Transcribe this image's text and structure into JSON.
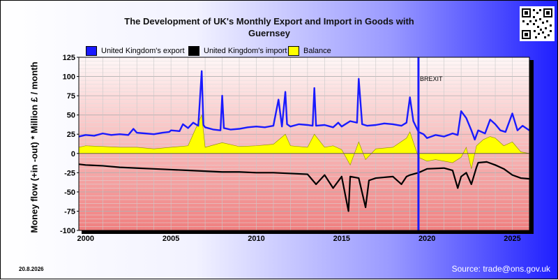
{
  "chart_data": {
    "type": "line",
    "title_line1": "The Development of UK's Monthly Export and Import in Goods with",
    "title_line2": "Guernsey",
    "ylabel": "Money flow (+in -out) * Million £ / month",
    "xlabel": "",
    "ylim": [
      -100,
      125
    ],
    "xlim": [
      1999.6,
      2026.0
    ],
    "yticks": [
      125,
      100,
      75,
      50,
      25,
      0,
      -25,
      -50,
      -75,
      -100
    ],
    "xticks": [
      2000,
      2005,
      2010,
      2015,
      2020,
      2025
    ],
    "grid": true,
    "legend_position": "top",
    "annotation": {
      "label": "BREXIT",
      "x": 2019.5
    },
    "series": [
      {
        "name": "United Kingdom's export",
        "color": "#1a1aff",
        "x": [
          1999.6,
          2000.0,
          2000.5,
          2001.0,
          2001.5,
          2002.0,
          2002.5,
          2002.8,
          2003.0,
          2003.5,
          2004.0,
          2004.5,
          2004.9,
          2005.0,
          2005.5,
          2005.7,
          2006.0,
          2006.3,
          2006.6,
          2006.8,
          2006.9,
          2007.0,
          2007.5,
          2007.9,
          2008.0,
          2008.1,
          2008.5,
          2009.0,
          2009.5,
          2010.0,
          2010.5,
          2011.0,
          2011.3,
          2011.5,
          2011.7,
          2011.8,
          2012.0,
          2012.5,
          2013.0,
          2013.3,
          2013.4,
          2013.5,
          2014.0,
          2014.5,
          2014.8,
          2015.0,
          2015.5,
          2015.9,
          2016.0,
          2016.2,
          2016.5,
          2017.0,
          2017.5,
          2018.0,
          2018.5,
          2018.8,
          2019.0,
          2019.2,
          2019.5,
          2019.8,
          2020.0,
          2020.5,
          2021.0,
          2021.5,
          2021.8,
          2022.0,
          2022.3,
          2022.6,
          2022.8,
          2023.0,
          2023.4,
          2023.7,
          2024.0,
          2024.3,
          2024.6,
          2025.0,
          2025.3,
          2025.6,
          2026.0
        ],
        "values": [
          22,
          24,
          23,
          26,
          24,
          25,
          24,
          32,
          27,
          26,
          25,
          27,
          28,
          30,
          29,
          38,
          33,
          40,
          36,
          107,
          37,
          34,
          31,
          30,
          75,
          33,
          31,
          32,
          34,
          35,
          34,
          36,
          70,
          35,
          80,
          38,
          35,
          38,
          37,
          36,
          85,
          36,
          37,
          34,
          40,
          35,
          42,
          40,
          97,
          38,
          36,
          37,
          39,
          38,
          36,
          40,
          73,
          42,
          28,
          25,
          20,
          24,
          22,
          26,
          24,
          55,
          46,
          30,
          18,
          30,
          26,
          44,
          38,
          30,
          28,
          52,
          30,
          36,
          30
        ]
      },
      {
        "name": "United Kingdom's import",
        "color": "#000000",
        "x": [
          1999.6,
          2000.0,
          2001.0,
          2002.0,
          2003.0,
          2004.0,
          2005.0,
          2006.0,
          2007.0,
          2008.0,
          2009.0,
          2010.0,
          2011.0,
          2012.0,
          2013.0,
          2013.5,
          2014.0,
          2014.5,
          2015.0,
          2015.4,
          2015.5,
          2016.0,
          2016.4,
          2016.6,
          2017.0,
          2018.0,
          2018.5,
          2018.8,
          2019.0,
          2019.5,
          2020.0,
          2021.0,
          2021.5,
          2021.8,
          2022.0,
          2022.3,
          2022.6,
          2022.9,
          2023.0,
          2023.5,
          2024.0,
          2024.5,
          2025.0,
          2025.5,
          2026.0
        ],
        "values": [
          -14,
          -15,
          -16,
          -18,
          -19,
          -20,
          -21,
          -22,
          -23,
          -24,
          -24,
          -25,
          -25,
          -26,
          -27,
          -40,
          -28,
          -45,
          -30,
          -75,
          -30,
          -32,
          -70,
          -35,
          -32,
          -30,
          -40,
          -30,
          -28,
          -25,
          -20,
          -19,
          -22,
          -45,
          -30,
          -25,
          -40,
          -18,
          -12,
          -11,
          -15,
          -20,
          -28,
          -32,
          -33
        ]
      },
      {
        "name": "Balance",
        "color": "#ffff00",
        "x": [
          1999.6,
          2000.0,
          2001.0,
          2002.0,
          2003.0,
          2004.0,
          2005.0,
          2006.0,
          2006.8,
          2007.0,
          2008.0,
          2009.0,
          2010.0,
          2011.0,
          2011.7,
          2012.0,
          2013.0,
          2013.4,
          2014.0,
          2014.5,
          2015.0,
          2015.5,
          2016.0,
          2016.4,
          2017.0,
          2018.0,
          2018.8,
          2019.0,
          2019.5,
          2020.0,
          2020.5,
          2021.0,
          2021.5,
          2022.0,
          2022.3,
          2022.6,
          2022.9,
          2023.3,
          2023.7,
          2024.0,
          2024.5,
          2025.0,
          2025.5,
          2026.0
        ],
        "values": [
          8,
          10,
          9,
          8,
          8,
          6,
          8,
          10,
          50,
          8,
          14,
          9,
          10,
          12,
          25,
          10,
          8,
          25,
          8,
          10,
          5,
          -15,
          15,
          -8,
          6,
          8,
          20,
          28,
          -5,
          -10,
          -8,
          -10,
          -12,
          -5,
          8,
          -20,
          10,
          18,
          22,
          20,
          10,
          15,
          2,
          0
        ]
      }
    ]
  },
  "legend": [
    {
      "label": "United Kingdom's export",
      "color": "#1a1aff"
    },
    {
      "label": "United Kingdom's import",
      "color": "#000000"
    },
    {
      "label": "Balance",
      "color": "#ffff00"
    }
  ],
  "footer": {
    "date": "20.8.2026",
    "source": "Source: trade@ons.gov.uk"
  }
}
